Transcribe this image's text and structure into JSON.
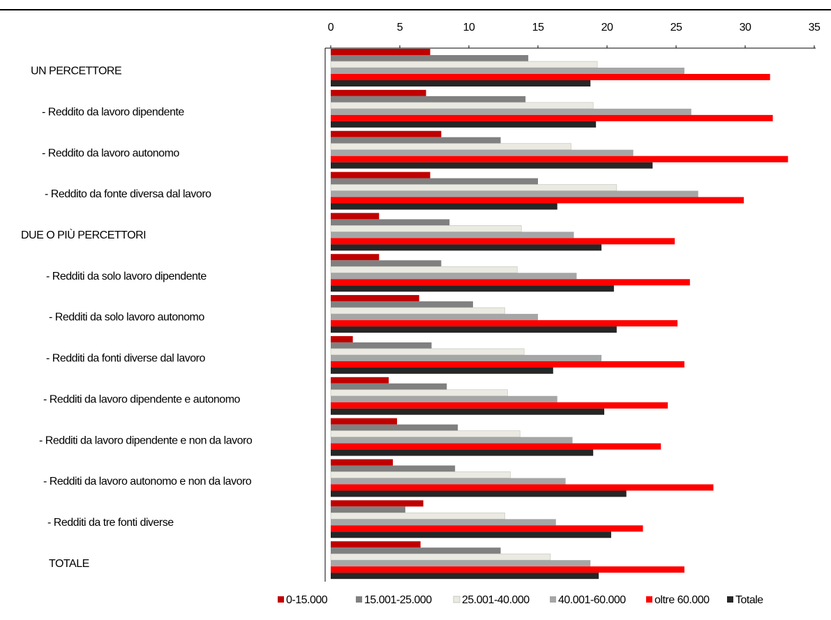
{
  "chart_data": {
    "type": "hbar",
    "categories": [
      "UN PERCETTORE",
      "- Reddito da lavoro dipendente",
      "- Reddito da lavoro autonomo",
      "- Reddito da fonte diversa dal lavoro",
      "DUE O PIÙ PERCETTORI",
      "- Redditi da solo lavoro dipendente",
      "- Redditi da solo lavoro autonomo",
      "- Redditi da fonti diverse dal lavoro",
      "- Redditi da lavoro dipendente e autonomo",
      "- Redditi da lavoro dipendente e non da lavoro",
      "- Redditi da lavoro autonomo e non da lavoro",
      "- Redditi da tre fonti diverse",
      "TOTALE"
    ],
    "series": [
      {
        "name": "0-15.000",
        "color": "#c00000",
        "values": [
          7.2,
          6.9,
          8.0,
          7.2,
          3.5,
          3.5,
          6.4,
          1.6,
          4.2,
          4.8,
          4.5,
          6.7,
          6.5
        ]
      },
      {
        "name": "15.001-25.000",
        "color": "#808080",
        "values": [
          14.3,
          14.1,
          12.3,
          15.0,
          8.6,
          8.0,
          10.3,
          7.3,
          8.4,
          9.2,
          9.0,
          5.4,
          12.3
        ]
      },
      {
        "name": "25.001-40.000",
        "color": "#eaeae2",
        "values": [
          19.3,
          19.0,
          17.4,
          20.7,
          13.8,
          13.5,
          12.6,
          14.0,
          12.8,
          13.7,
          13.0,
          12.6,
          15.9
        ]
      },
      {
        "name": "40.001-60.000",
        "color": "#a6a6a6",
        "values": [
          25.6,
          26.1,
          21.9,
          26.6,
          17.6,
          17.8,
          15.0,
          19.6,
          16.4,
          17.5,
          17.0,
          16.3,
          18.8
        ]
      },
      {
        "name": "oltre 60.000",
        "color": "#ff0000",
        "values": [
          31.8,
          32.0,
          33.1,
          29.9,
          24.9,
          26.0,
          25.1,
          25.6,
          24.4,
          23.9,
          27.7,
          22.6,
          25.6
        ]
      },
      {
        "name": "Totale",
        "color": "#262626",
        "values": [
          18.8,
          19.2,
          23.3,
          16.4,
          19.6,
          20.5,
          20.7,
          16.1,
          19.8,
          19.0,
          21.4,
          20.3,
          19.4
        ]
      }
    ],
    "xlim": [
      0,
      35
    ],
    "xticks": [
      0,
      5,
      10,
      15,
      20,
      25,
      30,
      35
    ]
  }
}
